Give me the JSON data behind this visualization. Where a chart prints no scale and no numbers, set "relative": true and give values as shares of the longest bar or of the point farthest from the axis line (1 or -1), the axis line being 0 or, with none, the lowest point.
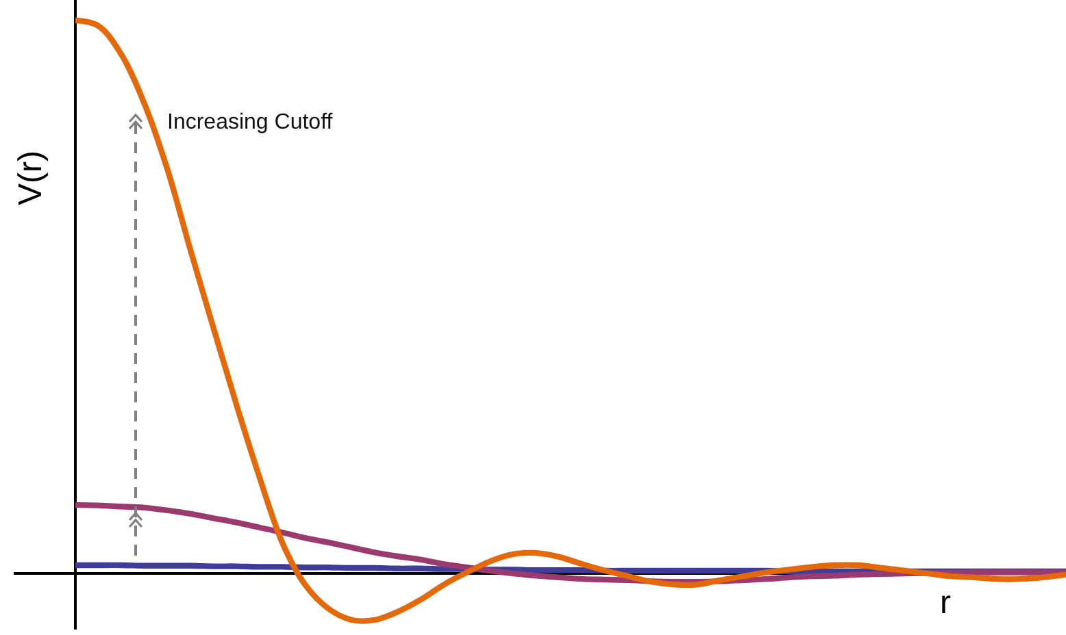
{
  "chart_data": {
    "type": "line",
    "relative": true,
    "xlabel": "r",
    "ylabel": "V(r)",
    "annotations": [
      "Increasing Cutoff"
    ],
    "categories": [
      null,
      null,
      null,
      null,
      null,
      null,
      null,
      null,
      null,
      null,
      null,
      null,
      null,
      null,
      null,
      null,
      null,
      null,
      null,
      null,
      null,
      null,
      null,
      null,
      null,
      null,
      null,
      null,
      null,
      null,
      null,
      null,
      null,
      null,
      null,
      null,
      null,
      null,
      null,
      null,
      null,
      null,
      null,
      null
    ],
    "series": [
      {
        "color": "#403d9a",
        "values": [
          0.015,
          0.015,
          0.015,
          0.014,
          0.014,
          0.014,
          0.013,
          0.013,
          0.012,
          0.012,
          0.011,
          0.011,
          0.01,
          0.01,
          0.009,
          0.009,
          0.008,
          0.008,
          0.007,
          0.007,
          0.006,
          0.006,
          0.006,
          0.005,
          0.005,
          0.005,
          0.005,
          0.005,
          0.005,
          0.005,
          0.005,
          0.004,
          0.004,
          0.004,
          0.004,
          0.004,
          0.004,
          0.004,
          0.004,
          0.004,
          0.004,
          0.004,
          0.004,
          0.004
        ]
      },
      {
        "color": "#9b3a6e",
        "values": [
          0.124,
          0.123,
          0.121,
          0.119,
          0.114,
          0.108,
          0.1,
          0.092,
          0.083,
          0.074,
          0.064,
          0.056,
          0.047,
          0.038,
          0.031,
          0.025,
          0.017,
          0.011,
          0.005,
          0.0,
          -0.004,
          -0.007,
          -0.01,
          -0.011,
          -0.012,
          -0.014,
          -0.015,
          -0.015,
          -0.014,
          -0.012,
          -0.01,
          -0.007,
          -0.005,
          -0.004,
          -0.002,
          -0.001,
          0.0,
          0.001,
          0.001,
          0.002,
          0.002,
          0.002,
          0.002,
          0.002
        ]
      },
      {
        "color": "#e3690b",
        "values": [
          1.0,
          0.99,
          0.938,
          0.849,
          0.73,
          0.584,
          0.443,
          0.304,
          0.173,
          0.054,
          -0.022,
          -0.064,
          -0.084,
          -0.084,
          -0.069,
          -0.047,
          -0.02,
          0.002,
          0.022,
          0.035,
          0.037,
          0.03,
          0.017,
          0.005,
          -0.005,
          -0.015,
          -0.02,
          -0.02,
          -0.012,
          -0.005,
          0.002,
          0.007,
          0.012,
          0.015,
          0.015,
          0.01,
          0.005,
          0.0,
          -0.005,
          -0.007,
          -0.01,
          -0.01,
          -0.007,
          -0.002
        ]
      }
    ]
  }
}
